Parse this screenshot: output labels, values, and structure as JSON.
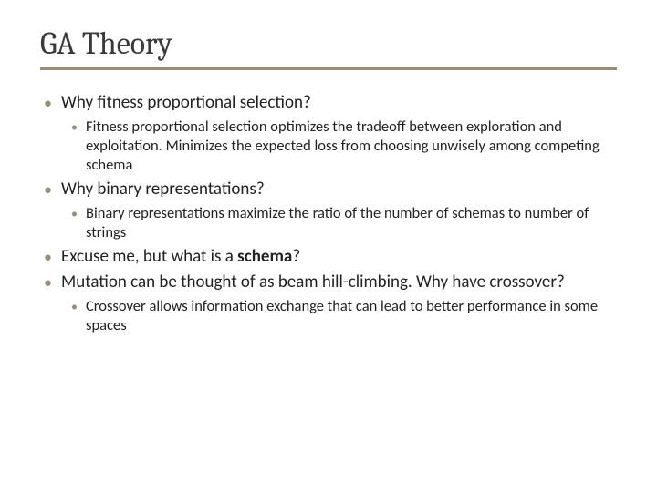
{
  "title": "GA Theory",
  "bullets": {
    "b1": "Why fitness proportional selection?",
    "b1_1": "Fitness proportional selection optimizes the tradeoff between exploration and exploitation. Minimizes the expected loss from choosing unwisely among competing schema",
    "b2": "Why binary representations?",
    "b2_1": "Binary representations maximize the ratio of the number of schemas to number of strings",
    "b3_pre": "Excuse me, but what is a ",
    "b3_bold": "schema",
    "b3_post": "?",
    "b4": "Mutation can be thought of as beam hill-climbing. Why have crossover?",
    "b4_1": "Crossover allows information exchange that can lead to better performance in some spaces"
  },
  "styling": {
    "background_color": "#ffffff",
    "title_font": "Cambria",
    "title_fontsize": 34,
    "title_color": "#3a3a3a",
    "underline_color": "#968f78",
    "body_font": "Calibri",
    "l1_fontsize": 19,
    "l2_fontsize": 16.5,
    "bullet_color": "#968f78",
    "text_color": "#222222",
    "slide_width": 720,
    "slide_height": 540
  }
}
